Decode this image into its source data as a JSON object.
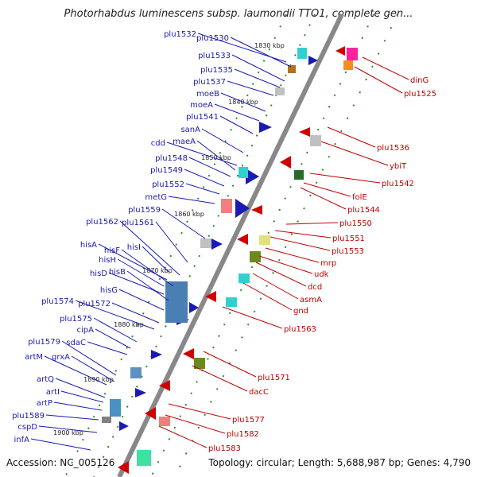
{
  "title": "Photorhabdus luminescens subsp. laumondii TTO1, complete gen...",
  "footer": {
    "accession": "Accession: NC_005126",
    "topology": "Topology: circular; Length: 5,688,987 bp; Genes: 4,790"
  },
  "ticks": [
    "1830 kbp",
    "1840 kbp",
    "1850 kbp",
    "1860 kbp",
    "1870 kbp",
    "1880 kbp",
    "1890 kbp",
    "1900 kbp"
  ],
  "left_genes": [
    "plu1532",
    "plu1530",
    "plu1533",
    "plu1535",
    "plu1537",
    "moeB",
    "moeA",
    "plu1541",
    "sanA",
    "cdd",
    "maeA",
    "plu1548",
    "plu1549",
    "plu1552",
    "metG",
    "plu1559",
    "plu1562",
    "plu1561",
    "hisA",
    "hisF",
    "hisI",
    "hisH",
    "hisD",
    "hisB",
    "hisG",
    "plu1574",
    "plu1572",
    "plu1575",
    "cipA",
    "sdaC",
    "plu1579",
    "artM",
    "grxA",
    "artQ",
    "artI",
    "artP",
    "plu1589",
    "cspD",
    "infA"
  ],
  "right_genes": [
    "dinG",
    "plu1525",
    "plu1536",
    "ybiT",
    "plu1542",
    "folE",
    "plu1544",
    "plu1550",
    "plu1551",
    "plu1553",
    "mrp",
    "udk",
    "dcd",
    "asmA",
    "gnd",
    "plu1563",
    "plu1571",
    "dacC",
    "plu1577",
    "plu1582",
    "plu1583"
  ],
  "colors": {
    "forward": "#1a1ab4",
    "reverse": "#c00000",
    "backbone": "#808080",
    "tick_dot": "#2a8a2a"
  }
}
